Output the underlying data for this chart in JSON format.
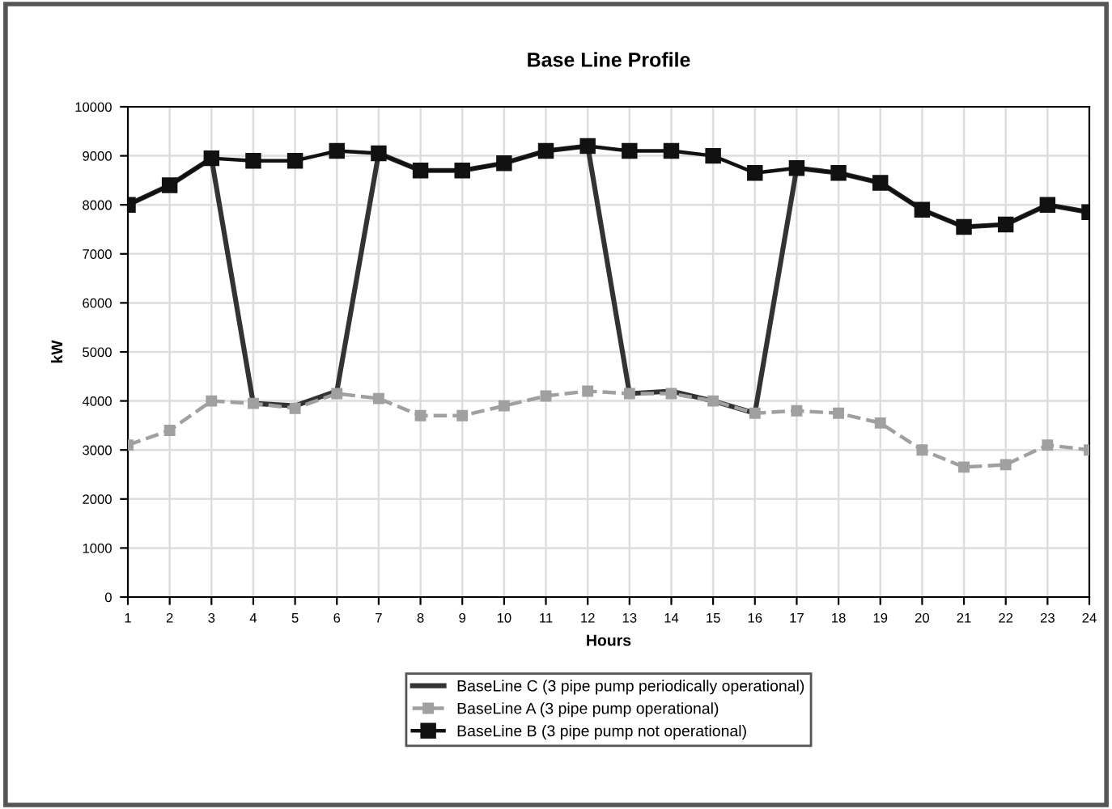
{
  "chart_data": {
    "type": "line",
    "title": "Base Line Profile",
    "xlabel": "Hours",
    "ylabel": "kW",
    "x": [
      1,
      2,
      3,
      4,
      5,
      6,
      7,
      8,
      9,
      10,
      11,
      12,
      13,
      14,
      15,
      16,
      17,
      18,
      19,
      20,
      21,
      22,
      23,
      24
    ],
    "xlim": [
      1,
      24
    ],
    "xticks": [
      1,
      2,
      3,
      4,
      5,
      6,
      7,
      8,
      9,
      10,
      11,
      12,
      13,
      14,
      15,
      16,
      17,
      18,
      19,
      20,
      21,
      22,
      23,
      24
    ],
    "ylim": [
      0,
      10000
    ],
    "yticks": [
      0,
      1000,
      2000,
      3000,
      4000,
      5000,
      6000,
      7000,
      8000,
      9000,
      10000
    ],
    "grid": true,
    "legend": "bottom",
    "series": [
      {
        "name": "BaseLine C (3 pipe pump periodically operational)",
        "color": "#333333",
        "marker": "none",
        "values": [
          8000,
          8400,
          8950,
          3950,
          3900,
          4200,
          9050,
          8700,
          8700,
          8850,
          9100,
          9200,
          4150,
          4200,
          4000,
          3750,
          8750,
          8650,
          8450,
          7900,
          7550,
          7600,
          8000,
          7850
        ]
      },
      {
        "name": "BaseLine A (3 pipe pump operational)",
        "color": "#a0a0a0",
        "marker": "square",
        "line_style": "dashed",
        "values": [
          3100,
          3400,
          4000,
          3950,
          3850,
          4150,
          4050,
          3700,
          3700,
          3900,
          4100,
          4200,
          4150,
          4150,
          4000,
          3750,
          3800,
          3750,
          3550,
          3000,
          2650,
          2700,
          3100,
          3000
        ]
      },
      {
        "name": "BaseLine B (3 pipe pump not operational)",
        "color": "#111111",
        "marker": "square",
        "values": [
          8000,
          8400,
          8950,
          8900,
          8900,
          9100,
          9050,
          8700,
          8700,
          8850,
          9100,
          9200,
          9100,
          9100,
          9000,
          8650,
          8750,
          8650,
          8450,
          7900,
          7550,
          7600,
          8000,
          7850
        ]
      }
    ]
  }
}
